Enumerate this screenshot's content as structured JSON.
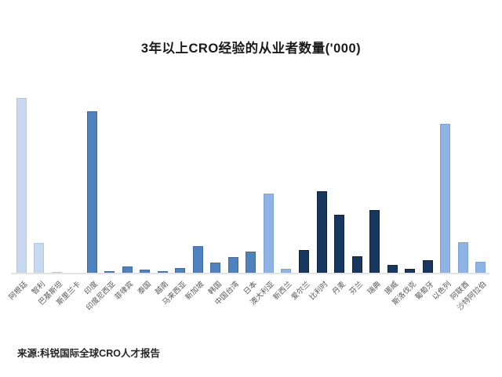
{
  "source": "来源:科锐国际全球CRO人才报告",
  "chart_data": {
    "type": "bar",
    "title": "3年以上CRO经验的从业者数量('000)",
    "xlabel": "",
    "ylabel": "",
    "legend": false,
    "grid": false,
    "y_axis_labels_visible": false,
    "value_unit": "relative bar height in px (no y-axis scale shown in image)",
    "ylim": [
      0,
      230
    ],
    "categories": [
      "阿根廷",
      "智利",
      "巴基斯坦",
      "斯里兰卡",
      "印度",
      "印度尼西亚",
      "菲律宾",
      "泰国",
      "越南",
      "马来西亚",
      "新加坡",
      "韩国",
      "中国台湾",
      "日本",
      "澳大利亚",
      "新西兰",
      "爱尔兰",
      "比利时",
      "丹麦",
      "芬兰",
      "瑞典",
      "挪威",
      "斯洛伐克",
      "葡萄牙",
      "以色列",
      "阿联酋",
      "沙特阿拉伯"
    ],
    "values": [
      224,
      39,
      2,
      1,
      207,
      3,
      9,
      5,
      3,
      7,
      35,
      14,
      21,
      28,
      102,
      6,
      30,
      105,
      75,
      22,
      81,
      11,
      6,
      17,
      191,
      40,
      15
    ],
    "bar_groups": [
      "light",
      "light",
      "light",
      "light",
      "medium",
      "medium",
      "medium",
      "medium",
      "medium",
      "medium",
      "medium",
      "medium",
      "medium",
      "medium",
      "sky",
      "sky",
      "dark",
      "dark",
      "dark",
      "dark",
      "dark",
      "dark",
      "dark",
      "dark",
      "sky",
      "sky",
      "sky"
    ],
    "group_colors": {
      "light": {
        "fill": "#c6d9f1",
        "border": "#aec6e8"
      },
      "medium": {
        "fill": "#4f81bd",
        "border": "#3f6da3"
      },
      "sky": {
        "fill": "#8eb4e3",
        "border": "#7da4d6"
      },
      "dark": {
        "fill": "#17375e",
        "border": "#0e2440"
      }
    }
  },
  "style_colors": {
    "background": "#ffffff",
    "axis_line": "#e4e4e4",
    "label_text": "#595959",
    "title_text": "#1a1a1a"
  }
}
